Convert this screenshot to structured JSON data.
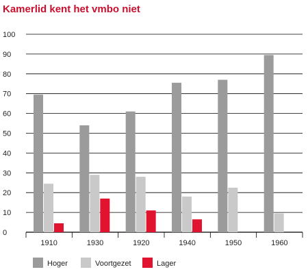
{
  "chart_data": {
    "type": "bar",
    "title": "Kamerlid kent het vmbo niet",
    "xlabel": "",
    "ylabel": "",
    "categories": [
      "1910",
      "1930",
      "1920",
      "1940",
      "1950",
      "1960"
    ],
    "series": [
      {
        "name": "Hoger",
        "values": [
          69.5,
          54,
          61,
          75.5,
          77,
          89.5
        ]
      },
      {
        "name": "Voortgezet",
        "values": [
          24.5,
          29,
          28,
          18,
          22.5,
          9.5
        ]
      },
      {
        "name": "Lager",
        "values": [
          4.5,
          17,
          11,
          6.5,
          null,
          null
        ]
      }
    ],
    "ylim": [
      0,
      100
    ],
    "yticks": [
      0,
      10,
      20,
      30,
      40,
      50,
      60,
      70,
      80,
      90,
      100
    ],
    "grid": true,
    "legend_position": "bottom-left"
  },
  "colors": {
    "title": "#c8102e",
    "series": [
      "#9b9b9b",
      "#c9c9c9",
      "#e0142f"
    ],
    "grid": "#000000"
  }
}
